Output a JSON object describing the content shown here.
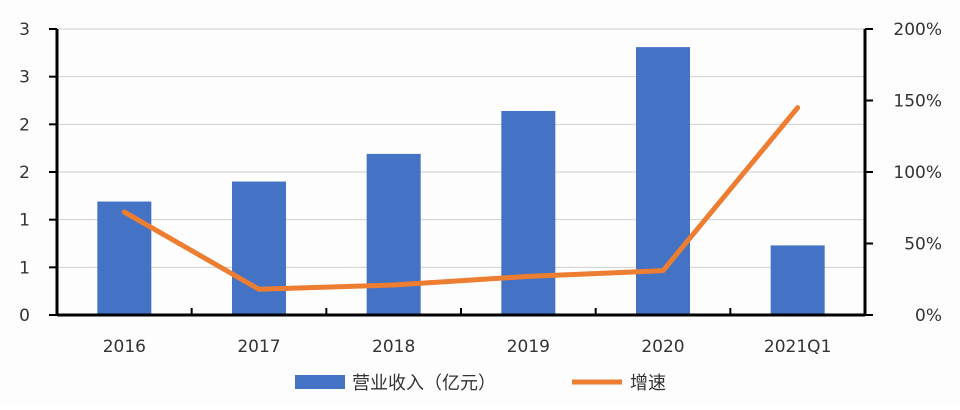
{
  "chart_data": {
    "type": "bar+line",
    "categories": [
      "2016",
      "2017",
      "2018",
      "2019",
      "2020",
      "2021Q1"
    ],
    "series": [
      {
        "name": "营业收入（亿元）",
        "type": "bar",
        "axis": "left",
        "color": "#4472C4",
        "values": [
          1.19,
          1.4,
          1.69,
          2.14,
          2.81,
          0.73
        ]
      },
      {
        "name": "增速",
        "type": "line",
        "axis": "right",
        "color": "#ED7D31",
        "values": [
          72,
          18,
          21,
          27,
          31,
          145
        ]
      }
    ],
    "left_axis": {
      "ylim": [
        0,
        3
      ],
      "tick_values": [
        0,
        0.5,
        1,
        1.5,
        2,
        2.5,
        3
      ],
      "tick_labels": [
        "0",
        "1",
        "1",
        "2",
        "2",
        "3",
        "3"
      ]
    },
    "right_axis": {
      "ylim": [
        0,
        200
      ],
      "tick_labels": [
        "0%",
        "50%",
        "100%",
        "150%",
        "200%"
      ]
    },
    "grid": true,
    "legend": "bottom"
  }
}
